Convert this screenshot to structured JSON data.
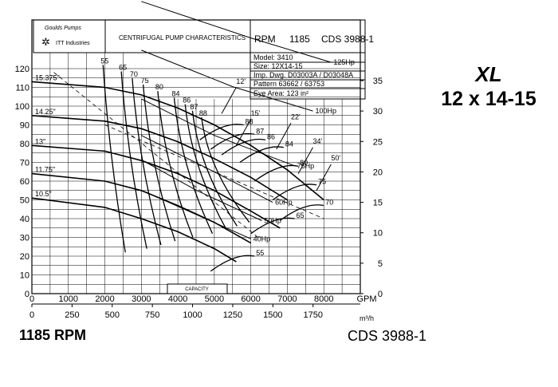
{
  "header": {
    "logo_line1": "Goulds Pumps",
    "logo_line2": "ITT Industries",
    "title": "CENTRIFUGAL PUMP CHARACTERISTICS",
    "rpm_label": "RPM",
    "rpm_value": "1185",
    "cds": "CDS 3988-1",
    "model": "Model: 3410",
    "size": "Size: 12X14-15",
    "imp_dwg": "Imp. Dwg. D03003A / D03048A",
    "pattern": "Pattern 63662 / 63753",
    "eye_area": "Eye Area:   123 in²"
  },
  "series_title": "XL",
  "size_title": "12 x 14-15",
  "footer": {
    "rpm": "1185 RPM",
    "cds": "CDS 3988-1"
  },
  "capacity_label": "CAPACITY",
  "colors": {
    "line": "#000000",
    "grid": "#000000",
    "background": "#ffffff"
  },
  "chart_data": {
    "type": "line",
    "x": {
      "unit": "GPM",
      "range": [
        0,
        9000
      ],
      "ticks": [
        0,
        1000,
        2000,
        3000,
        4000,
        5000,
        6000,
        7000,
        8000
      ]
    },
    "x2": {
      "unit": "m³/h",
      "ticks": [
        0,
        250,
        500,
        750,
        1000,
        1250,
        1500,
        1750
      ]
    },
    "y": {
      "range": [
        0,
        120
      ],
      "ticks": [
        0,
        10,
        20,
        30,
        40,
        50,
        60,
        70,
        80,
        90,
        100,
        110,
        120
      ]
    },
    "y2": {
      "range": [
        0,
        35
      ],
      "ticks": [
        0,
        5,
        10,
        15,
        20,
        25,
        30,
        35
      ]
    },
    "grid": true,
    "head_curves": [
      {
        "name": "15.375\"",
        "points": [
          [
            0,
            113
          ],
          [
            2000,
            110
          ],
          [
            3000,
            106
          ],
          [
            4000,
            99
          ],
          [
            5000,
            90
          ],
          [
            6000,
            79
          ],
          [
            7000,
            66
          ],
          [
            8000,
            50
          ]
        ]
      },
      {
        "name": "14.25\"",
        "points": [
          [
            0,
            95
          ],
          [
            2000,
            92
          ],
          [
            3000,
            88
          ],
          [
            4000,
            81
          ],
          [
            5000,
            72
          ],
          [
            6000,
            62
          ],
          [
            7000,
            50
          ]
        ]
      },
      {
        "name": "13\"",
        "points": [
          [
            0,
            79
          ],
          [
            2000,
            76
          ],
          [
            3000,
            71
          ],
          [
            4000,
            64
          ],
          [
            5000,
            55
          ],
          [
            6000,
            44
          ],
          [
            6800,
            35
          ]
        ]
      },
      {
        "name": "11.75\"",
        "points": [
          [
            0,
            64
          ],
          [
            2000,
            60
          ],
          [
            3000,
            55
          ],
          [
            4000,
            47
          ],
          [
            5000,
            38
          ],
          [
            6000,
            27
          ]
        ]
      },
      {
        "name": "10.5\"",
        "points": [
          [
            0,
            51
          ],
          [
            2000,
            46
          ],
          [
            3000,
            40
          ],
          [
            4000,
            33
          ],
          [
            5000,
            24
          ],
          [
            5600,
            17
          ]
        ]
      }
    ],
    "efficiency_labels": [
      "55",
      "65",
      "70",
      "75",
      "80",
      "84",
      "86",
      "87",
      "88"
    ],
    "efficiency_labels_right": [
      "88",
      "87",
      "86",
      "84",
      "80",
      "75",
      "70",
      "65",
      "55"
    ],
    "npsh_labels": [
      "12'",
      "15'",
      "22'",
      "34'",
      "50'"
    ],
    "power_curves": [
      {
        "name": "40Hp",
        "points": [
          [
            3000,
            17
          ],
          [
            4500,
            13
          ],
          [
            6000,
            9
          ]
        ]
      },
      {
        "name": "50Hp",
        "points": [
          [
            3000,
            22
          ],
          [
            4500,
            17
          ],
          [
            6300,
            12
          ]
        ]
      },
      {
        "name": "60Hp",
        "points": [
          [
            3000,
            26
          ],
          [
            5000,
            20
          ],
          [
            6600,
            15
          ]
        ]
      },
      {
        "name": "75Hp",
        "points": [
          [
            3000,
            32
          ],
          [
            5000,
            26
          ],
          [
            7200,
            21
          ]
        ]
      },
      {
        "name": "100Hp",
        "points": [
          [
            3000,
            40
          ],
          [
            5500,
            34
          ],
          [
            7700,
            30
          ]
        ]
      },
      {
        "name": "125Hp",
        "points": [
          [
            3000,
            48
          ],
          [
            6000,
            42
          ],
          [
            8200,
            38
          ]
        ]
      }
    ]
  }
}
